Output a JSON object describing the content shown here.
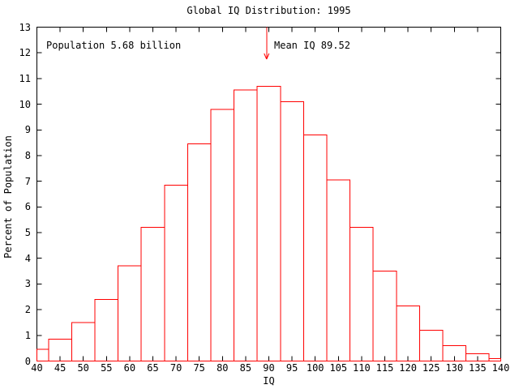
{
  "chart_data": {
    "type": "bar",
    "subtype": "histogram",
    "title": "Global IQ Distribution: 1995",
    "xlabel": "IQ",
    "ylabel": "Percent of Population",
    "xlim": [
      40,
      140
    ],
    "ylim": [
      0,
      13
    ],
    "x_tick_step": 5,
    "y_tick_step": 1,
    "grid": false,
    "legend_position": "none",
    "bin_width": 5,
    "categories": [
      40,
      45,
      50,
      55,
      60,
      65,
      70,
      75,
      80,
      85,
      90,
      95,
      100,
      105,
      110,
      115,
      120,
      125,
      130,
      135,
      140
    ],
    "values": [
      0.45,
      0.85,
      1.5,
      2.4,
      3.7,
      5.2,
      6.85,
      8.45,
      9.8,
      10.55,
      10.7,
      10.1,
      8.8,
      7.05,
      5.2,
      3.5,
      2.15,
      1.2,
      0.6,
      0.28,
      0.1
    ],
    "annotations": {
      "population_label": "Population 5.68 billion",
      "mean_label": "Mean IQ 89.52",
      "mean_iq": 89.52
    },
    "colors": {
      "series": "#ff0000",
      "axis": "#000000",
      "text": "#000000",
      "background": "#ffffff"
    }
  }
}
